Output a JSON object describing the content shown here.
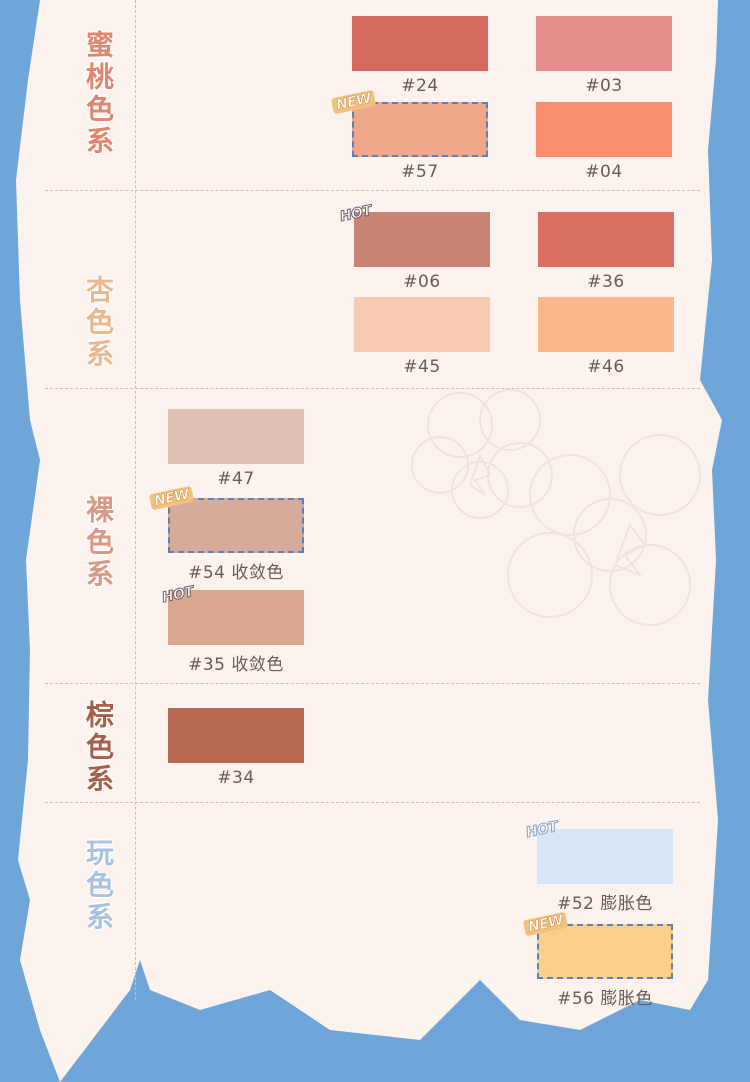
{
  "categories": [
    {
      "label": "蜜桃色系",
      "color": "#e0856e"
    },
    {
      "label": "杏色系",
      "color": "#e9b88f"
    },
    {
      "label": "裸色系",
      "color": "#d79a84"
    },
    {
      "label": "棕色系",
      "color": "#a5604c"
    },
    {
      "label": "玩色系",
      "color": "#a9c2e0"
    }
  ],
  "swatches": [
    {
      "code": "#24",
      "color": "#d36a5b",
      "tag": ""
    },
    {
      "code": "#03",
      "color": "#e58e8e",
      "tag": ""
    },
    {
      "code": "#57",
      "color": "#efa78a",
      "tag": "NEW"
    },
    {
      "code": "#04",
      "color": "#fb8e71",
      "tag": ""
    },
    {
      "code": "#06",
      "color": "#c78472",
      "tag": "HOT"
    },
    {
      "code": "#36",
      "color": "#db6e63",
      "tag": ""
    },
    {
      "code": "#45",
      "color": "#f6cbb1",
      "tag": ""
    },
    {
      "code": "#46",
      "color": "#fbb68b",
      "tag": ""
    },
    {
      "code": "#47",
      "color": "#dfc2b3",
      "tag": ""
    },
    {
      "code": "#54 收敛色",
      "color": "#d6ab9b",
      "tag": "NEW"
    },
    {
      "code": "#35 收敛色",
      "color": "#d8a78e",
      "tag": "HOT"
    },
    {
      "code": "#34",
      "color": "#b76852",
      "tag": ""
    },
    {
      "code": "#52 膨胀色",
      "color": "#d6e6f7",
      "tag": "HOT"
    },
    {
      "code": "#56 膨胀色",
      "color": "#fccf8a",
      "tag": "NEW"
    }
  ],
  "colors": {
    "background": "#6fa6d9",
    "paper": "#fdf3ee",
    "label_text": "#6b5a57"
  }
}
